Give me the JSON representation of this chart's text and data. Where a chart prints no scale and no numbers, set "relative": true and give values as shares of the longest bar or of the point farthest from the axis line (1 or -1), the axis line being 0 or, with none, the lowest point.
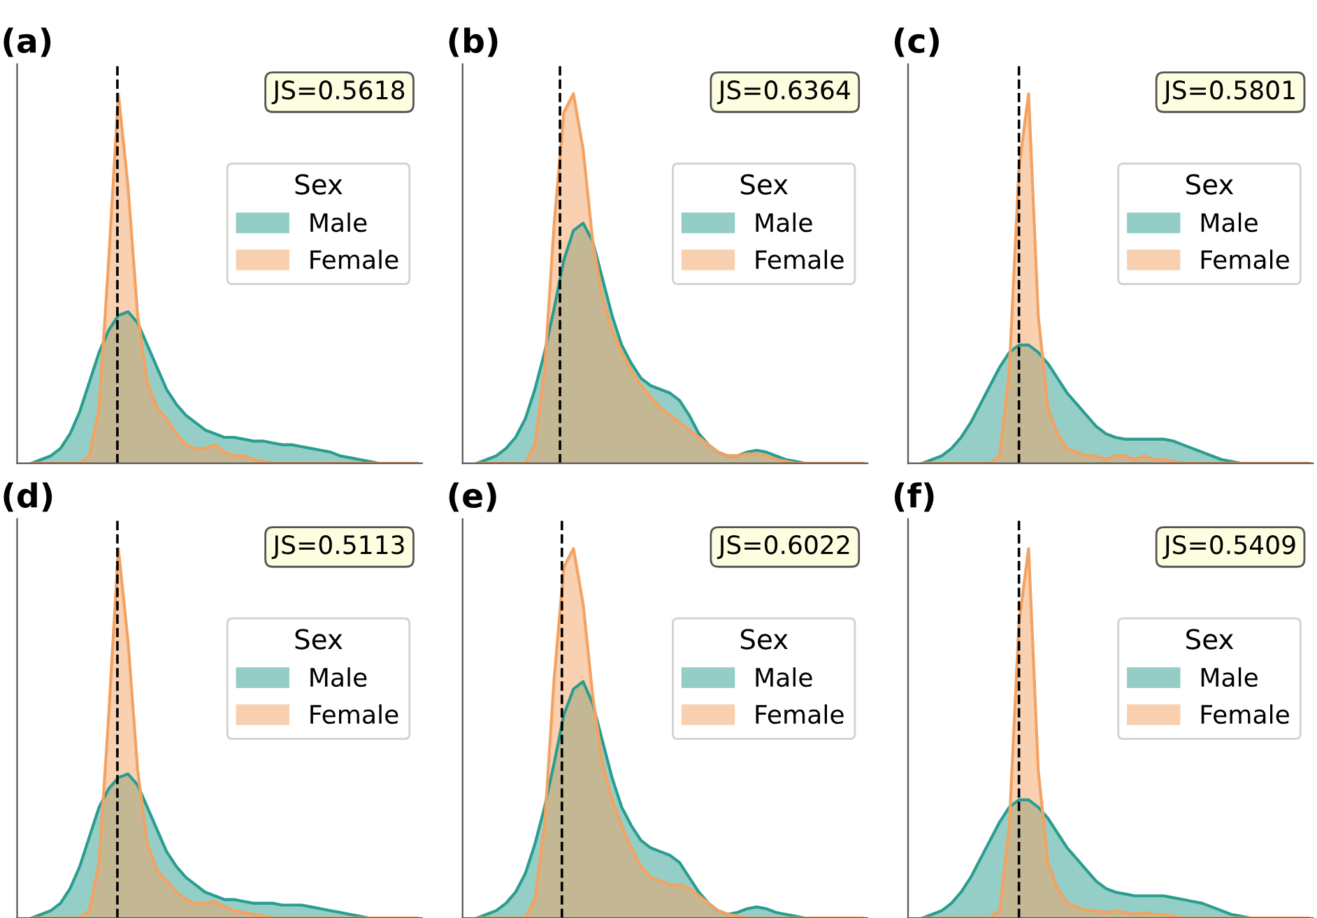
{
  "chart_data": [
    {
      "type": "area",
      "title": "(a)",
      "relative": true,
      "legend": "right",
      "legend_title": "Sex",
      "grid": false,
      "annotations": [
        "JS=0.5618"
      ],
      "categories": [
        null,
        null,
        null,
        null,
        null,
        null,
        null,
        null,
        null,
        null,
        null,
        null,
        null,
        null,
        null,
        null,
        null,
        null,
        null,
        null,
        null,
        null,
        null,
        null,
        null,
        null,
        null,
        null,
        null,
        null,
        null,
        null,
        null,
        null,
        null,
        null,
        null,
        null,
        null,
        null,
        null
      ],
      "series": [
        {
          "name": "Male",
          "color": "#2a9d8f",
          "values": [
            0,
            0.01,
            0.02,
            0.04,
            0.08,
            0.14,
            0.22,
            0.3,
            0.36,
            0.4,
            0.41,
            0.38,
            0.32,
            0.26,
            0.2,
            0.16,
            0.13,
            0.11,
            0.09,
            0.08,
            0.07,
            0.07,
            0.065,
            0.06,
            0.06,
            0.055,
            0.05,
            0.05,
            0.045,
            0.04,
            0.035,
            0.03,
            0.02,
            0.015,
            0.01,
            0.005,
            0,
            0,
            0,
            0,
            0
          ]
        },
        {
          "name": "Female",
          "color": "#f4a261",
          "values": [
            0,
            0,
            0,
            0,
            0,
            0,
            0.02,
            0.15,
            0.55,
            1,
            0.75,
            0.4,
            0.22,
            0.15,
            0.12,
            0.08,
            0.05,
            0.04,
            0.04,
            0.05,
            0.03,
            0.02,
            0.02,
            0.01,
            0.005,
            0,
            0,
            0,
            0,
            0,
            0,
            0,
            0,
            0,
            0,
            0,
            0,
            0,
            0,
            0,
            0
          ]
        }
      ]
    },
    {
      "type": "area",
      "title": "(b)",
      "relative": true,
      "legend": "right",
      "legend_title": "Sex",
      "grid": false,
      "annotations": [
        "JS=0.6364"
      ],
      "categories": [
        null,
        null,
        null,
        null,
        null,
        null,
        null,
        null,
        null,
        null,
        null,
        null,
        null,
        null,
        null,
        null,
        null,
        null,
        null,
        null,
        null,
        null,
        null,
        null,
        null,
        null,
        null,
        null,
        null,
        null,
        null,
        null,
        null,
        null,
        null,
        null,
        null,
        null,
        null,
        null,
        null
      ],
      "series": [
        {
          "name": "Male",
          "color": "#2a9d8f",
          "values": [
            0,
            0.01,
            0.02,
            0.04,
            0.07,
            0.12,
            0.2,
            0.3,
            0.42,
            0.55,
            0.63,
            0.65,
            0.6,
            0.5,
            0.4,
            0.32,
            0.27,
            0.23,
            0.21,
            0.2,
            0.19,
            0.17,
            0.13,
            0.08,
            0.05,
            0.03,
            0.02,
            0.02,
            0.03,
            0.035,
            0.03,
            0.02,
            0.01,
            0.005,
            0,
            0,
            0,
            0,
            0,
            0,
            0
          ]
        },
        {
          "name": "Female",
          "color": "#f4a261",
          "values": [
            0,
            0,
            0,
            0,
            0,
            0,
            0.05,
            0.25,
            0.65,
            0.95,
            1,
            0.85,
            0.6,
            0.45,
            0.36,
            0.3,
            0.25,
            0.21,
            0.18,
            0.15,
            0.13,
            0.11,
            0.09,
            0.07,
            0.05,
            0.03,
            0.02,
            0.02,
            0.025,
            0.025,
            0.02,
            0.01,
            0.005,
            0,
            0,
            0,
            0,
            0,
            0,
            0,
            0
          ]
        }
      ]
    },
    {
      "type": "area",
      "title": "(c)",
      "relative": true,
      "legend": "right",
      "legend_title": "Sex",
      "grid": false,
      "annotations": [
        "JS=0.5801"
      ],
      "categories": [
        null,
        null,
        null,
        null,
        null,
        null,
        null,
        null,
        null,
        null,
        null,
        null,
        null,
        null,
        null,
        null,
        null,
        null,
        null,
        null,
        null,
        null,
        null,
        null,
        null,
        null,
        null,
        null,
        null,
        null,
        null,
        null,
        null,
        null,
        null,
        null,
        null,
        null,
        null,
        null,
        null
      ],
      "series": [
        {
          "name": "Male",
          "color": "#2a9d8f",
          "values": [
            0,
            0.01,
            0.02,
            0.04,
            0.07,
            0.11,
            0.16,
            0.21,
            0.26,
            0.3,
            0.32,
            0.32,
            0.3,
            0.27,
            0.23,
            0.19,
            0.16,
            0.13,
            0.1,
            0.08,
            0.07,
            0.065,
            0.065,
            0.065,
            0.065,
            0.065,
            0.06,
            0.05,
            0.04,
            0.03,
            0.02,
            0.01,
            0.005,
            0,
            0,
            0,
            0,
            0,
            0,
            0,
            0
          ]
        },
        {
          "name": "Female",
          "color": "#f4a261",
          "values": [
            0,
            0,
            0,
            0,
            0,
            0,
            0,
            0,
            0.02,
            0.25,
            0.8,
            1,
            0.4,
            0.15,
            0.08,
            0.04,
            0.03,
            0.02,
            0.02,
            0.01,
            0.02,
            0.02,
            0.01,
            0.02,
            0.01,
            0.01,
            0.005,
            0,
            0,
            0,
            0,
            0,
            0,
            0,
            0,
            0,
            0,
            0,
            0,
            0,
            0
          ]
        }
      ]
    },
    {
      "type": "area",
      "title": "(d)",
      "relative": true,
      "legend": "right",
      "legend_title": "Sex",
      "grid": false,
      "annotations": [
        "JS=0.5113"
      ],
      "categories": [
        null,
        null,
        null,
        null,
        null,
        null,
        null,
        null,
        null,
        null,
        null,
        null,
        null,
        null,
        null,
        null,
        null,
        null,
        null,
        null,
        null,
        null,
        null,
        null,
        null,
        null,
        null,
        null,
        null,
        null,
        null,
        null,
        null,
        null,
        null,
        null,
        null,
        null,
        null,
        null,
        null
      ],
      "series": [
        {
          "name": "Male",
          "color": "#2a9d8f",
          "values": [
            0,
            0.01,
            0.02,
            0.04,
            0.08,
            0.14,
            0.22,
            0.3,
            0.35,
            0.38,
            0.39,
            0.36,
            0.3,
            0.24,
            0.18,
            0.14,
            0.11,
            0.09,
            0.07,
            0.06,
            0.05,
            0.05,
            0.045,
            0.04,
            0.04,
            0.04,
            0.035,
            0.035,
            0.035,
            0.03,
            0.025,
            0.02,
            0.015,
            0.01,
            0.005,
            0,
            0,
            0,
            0,
            0,
            0
          ]
        },
        {
          "name": "Female",
          "color": "#f4a261",
          "values": [
            0,
            0,
            0,
            0,
            0,
            0,
            0.02,
            0.15,
            0.55,
            1,
            0.75,
            0.4,
            0.2,
            0.13,
            0.1,
            0.07,
            0.05,
            0.04,
            0.04,
            0.045,
            0.03,
            0.02,
            0.015,
            0.01,
            0.005,
            0,
            0,
            0,
            0,
            0,
            0,
            0,
            0,
            0,
            0,
            0,
            0,
            0,
            0,
            0,
            0
          ]
        }
      ]
    },
    {
      "type": "area",
      "title": "(e)",
      "relative": true,
      "legend": "right",
      "legend_title": "Sex",
      "grid": false,
      "annotations": [
        "JS=0.6022"
      ],
      "categories": [
        null,
        null,
        null,
        null,
        null,
        null,
        null,
        null,
        null,
        null,
        null,
        null,
        null,
        null,
        null,
        null,
        null,
        null,
        null,
        null,
        null,
        null,
        null,
        null,
        null,
        null,
        null,
        null,
        null,
        null,
        null,
        null,
        null,
        null,
        null,
        null,
        null,
        null,
        null,
        null,
        null
      ],
      "series": [
        {
          "name": "Male",
          "color": "#2a9d8f",
          "values": [
            0,
            0.01,
            0.02,
            0.04,
            0.07,
            0.12,
            0.2,
            0.3,
            0.42,
            0.55,
            0.62,
            0.64,
            0.58,
            0.48,
            0.38,
            0.3,
            0.25,
            0.21,
            0.19,
            0.18,
            0.17,
            0.15,
            0.11,
            0.07,
            0.04,
            0.02,
            0.01,
            0.015,
            0.025,
            0.03,
            0.025,
            0.015,
            0.01,
            0.005,
            0,
            0,
            0,
            0,
            0,
            0,
            0
          ]
        },
        {
          "name": "Female",
          "color": "#f4a261",
          "values": [
            0,
            0,
            0,
            0,
            0,
            0,
            0.05,
            0.25,
            0.65,
            0.95,
            1,
            0.85,
            0.6,
            0.42,
            0.32,
            0.25,
            0.19,
            0.14,
            0.11,
            0.1,
            0.09,
            0.09,
            0.08,
            0.06,
            0.04,
            0.02,
            0.01,
            0.005,
            0,
            0,
            0,
            0,
            0,
            0,
            0,
            0,
            0,
            0,
            0,
            0,
            0
          ]
        }
      ]
    },
    {
      "type": "area",
      "title": "(f)",
      "relative": true,
      "legend": "right",
      "legend_title": "Sex",
      "grid": false,
      "annotations": [
        "JS=0.5409"
      ],
      "categories": [
        null,
        null,
        null,
        null,
        null,
        null,
        null,
        null,
        null,
        null,
        null,
        null,
        null,
        null,
        null,
        null,
        null,
        null,
        null,
        null,
        null,
        null,
        null,
        null,
        null,
        null,
        null,
        null,
        null,
        null,
        null,
        null,
        null,
        null,
        null,
        null,
        null,
        null,
        null,
        null,
        null
      ],
      "series": [
        {
          "name": "Male",
          "color": "#2a9d8f",
          "values": [
            0,
            0.01,
            0.02,
            0.04,
            0.07,
            0.11,
            0.16,
            0.21,
            0.26,
            0.3,
            0.32,
            0.32,
            0.3,
            0.27,
            0.23,
            0.19,
            0.16,
            0.13,
            0.1,
            0.08,
            0.07,
            0.065,
            0.06,
            0.06,
            0.06,
            0.06,
            0.055,
            0.05,
            0.045,
            0.04,
            0.03,
            0.02,
            0.01,
            0.005,
            0,
            0,
            0,
            0,
            0,
            0,
            0
          ]
        },
        {
          "name": "Female",
          "color": "#f4a261",
          "values": [
            0,
            0,
            0,
            0,
            0,
            0,
            0,
            0,
            0.02,
            0.25,
            0.8,
            1,
            0.4,
            0.15,
            0.08,
            0.04,
            0.03,
            0.02,
            0.02,
            0.015,
            0.02,
            0.015,
            0.01,
            0.015,
            0.01,
            0.01,
            0.005,
            0,
            0,
            0,
            0,
            0,
            0,
            0,
            0,
            0,
            0,
            0,
            0,
            0,
            0
          ]
        }
      ]
    }
  ]
}
